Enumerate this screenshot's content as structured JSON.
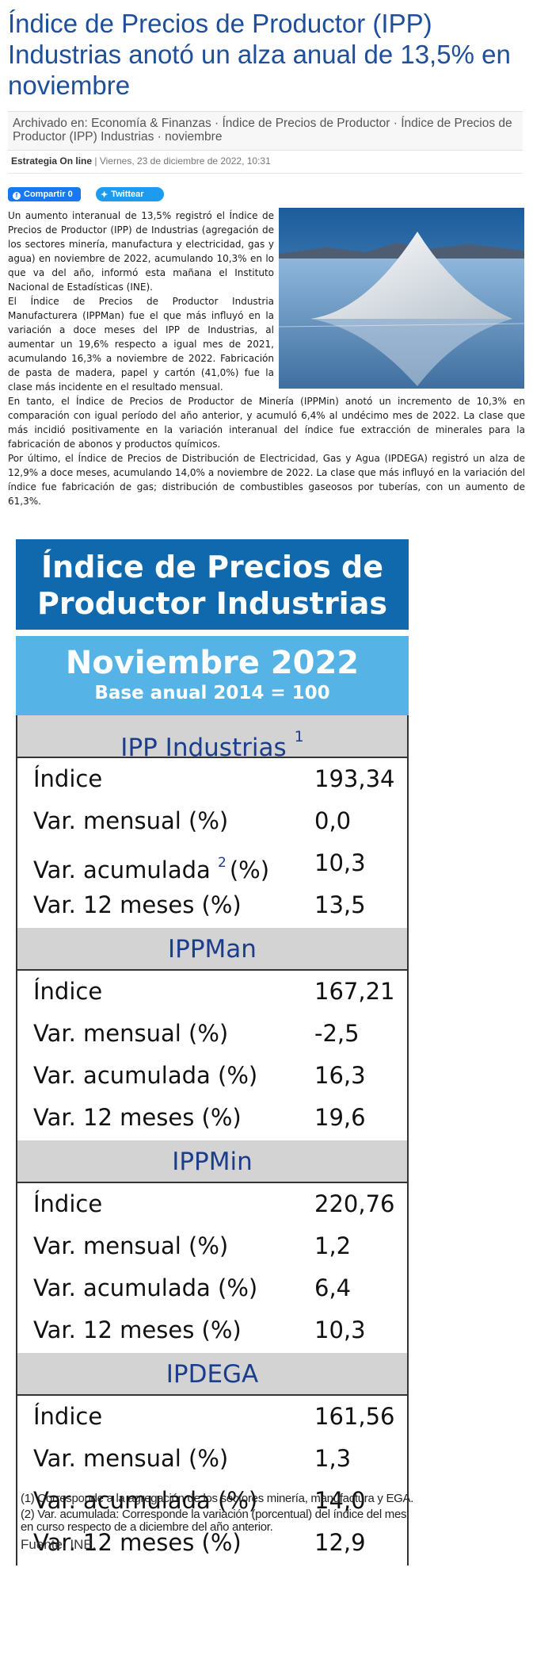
{
  "article": {
    "title": "Índice de Precios de Productor (IPP) Industrias anotó un alza anual de 13,5% en noviembre",
    "archived_label": "Archivado en:",
    "archived_tags": "Economía & Finanzas · Índice de Precios de Productor · Índice de Precios de Productor (IPP) Industrias · noviembre",
    "author": "Estrategia On line",
    "separator": "|",
    "date": "Viernes, 23 de diciembre de 2022, 10:31"
  },
  "share": {
    "facebook_label": "Compartir 0",
    "twitter_label": "Twittear"
  },
  "paragraphs": [
    "Un aumento interanual de 13,5% registró el Índice de Precios de Productor (IPP) de Industrias (agregación de los sectores minería, manufactura y electricidad, gas y agua) en noviembre de 2022, acumulando 10,3% en lo que va del año, informó esta mañana el Instituto Nacional de Estadísticas (INE).",
    "El Índice de Precios de Productor Industria Manufacturera (IPPMan) fue el que más influyó en la variación a doce meses del IPP de Industrias, al aumentar un 19,6% respecto a igual mes de 2021, acumulando 16,3% a noviembre de 2022. Fabricación de pasta de madera, papel y cartón (41,0%) fue la clase más incidente en el resultado mensual.",
    "En tanto, el Índice de Precios de Productor de Minería (IPPMin) anotó un incremento de 10,3% en comparación con igual período del año anterior, y acumuló 6,4% al undécimo mes de 2022. La clase que más incidió positivamente en la variación interanual del índice fue extracción de minerales para la fabricación de abonos y productos químicos.",
    "Por último, el Índice de Precios de Distribución de Electricidad, Gas y Agua (IPDEGA) registró un alza de 12,9% a doce meses, acumulando 14,0% a noviembre de 2022. La clase que más influyó en la variación del índice fue fabricación de gas; distribución de combustibles gaseosos por tuberías, con un aumento de 61,3%."
  ],
  "infographic": {
    "title_line1": "Índice de Precios de",
    "title_line2": "Productor Industrias",
    "month": "Noviembre 2022",
    "base": "Base anual 2014 = 100",
    "sections": [
      {
        "name": "IPP Industrias",
        "note": "1",
        "rows": [
          {
            "label": "Índice",
            "value": "193,34"
          },
          {
            "label": "Var. mensual (%)",
            "value": "0,0"
          },
          {
            "label": "Var. acumulada",
            "note": "2",
            "label_suffix": "(%)",
            "value": "10,3"
          },
          {
            "label": "Var. 12 meses (%)",
            "value": "13,5"
          }
        ]
      },
      {
        "name": "IPPMan",
        "rows": [
          {
            "label": "Índice",
            "value": "167,21"
          },
          {
            "label": "Var. mensual (%)",
            "value": "-2,5"
          },
          {
            "label": "Var. acumulada (%)",
            "value": "16,3"
          },
          {
            "label": "Var. 12 meses (%)",
            "value": "19,6"
          }
        ]
      },
      {
        "name": "IPPMin",
        "rows": [
          {
            "label": "Índice",
            "value": "220,76"
          },
          {
            "label": "Var. mensual (%)",
            "value": "1,2"
          },
          {
            "label": "Var. acumulada (%)",
            "value": "6,4"
          },
          {
            "label": "Var. 12 meses (%)",
            "value": "10,3"
          }
        ]
      },
      {
        "name": "IPDEGA",
        "rows": [
          {
            "label": "Índice",
            "value": "161,56"
          },
          {
            "label": "Var. mensual (%)",
            "value": "1,3"
          },
          {
            "label": "Var. acumulada (%)",
            "value": "14,0"
          },
          {
            "label": "Var. 12 meses (%)",
            "value": "12,9"
          }
        ]
      }
    ],
    "footnote1": "(1) Corresponde a la agregación de los sectores minería, manufactura y EGA.",
    "footnote2": "(2) Var. acumulada: Corresponde la variación (porcentual) del índice del mes en curso respecto de a diciembre del año anterior.",
    "source": "Fuente: INE."
  },
  "icons": {
    "facebook": "facebook-icon",
    "twitter": "twitter-bird-icon"
  },
  "colors": {
    "title": "#1d4f9a",
    "facebook": "#1877f2",
    "twitter": "#1d9bf0",
    "infographic_header": "#1069ad",
    "infographic_month": "#55b3e6",
    "section_header": "#d3d3d3"
  }
}
